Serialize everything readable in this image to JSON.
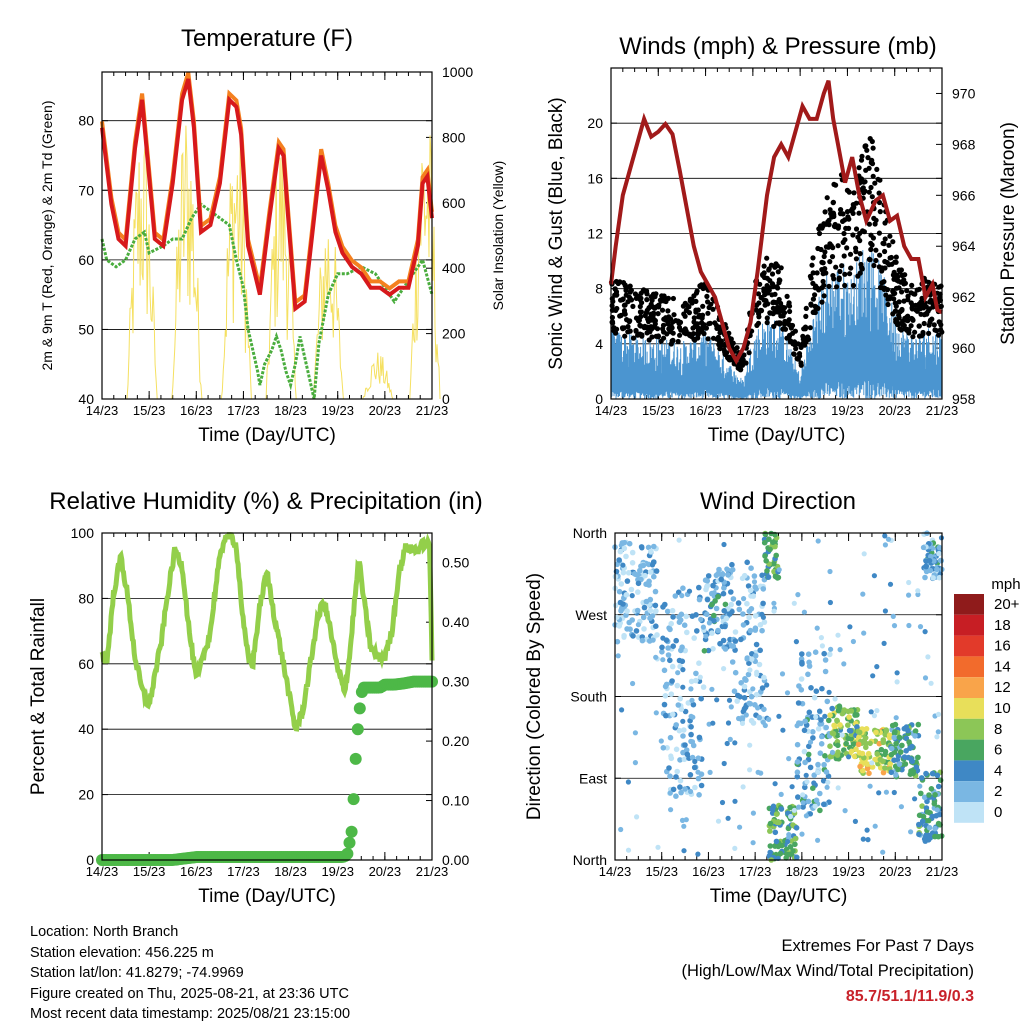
{
  "x_ticks": [
    "14/23",
    "15/23",
    "16/23",
    "17/23",
    "18/23",
    "19/23",
    "20/23",
    "21/23"
  ],
  "info": {
    "location": "Location: North Branch",
    "elevation": "Station elevation: 456.225 m",
    "latlon": "Station lat/lon: 41.8279; -74.9969",
    "created": "Figure created on Thu, 2025-08-21, at 23:36 UTC",
    "latest": "Most recent data timestamp: 2025/08/21 23:15:00"
  },
  "extremes": {
    "title": "Extremes For Past 7 Days",
    "subtitle": "(High/Low/Max Wind/Total Precipitation)",
    "values": "85.7/51.1/11.9/0.3"
  },
  "colors": {
    "temp_2m": "#d7191c",
    "temp_9m": "#f4801f",
    "dewpoint": "#4aad3e",
    "solar": "#f5e061",
    "sonic": "#4b95d0",
    "gust": "#000000",
    "pressure": "#a11a1a",
    "rh": "#93cf4a",
    "precip": "#4db847"
  },
  "chart_data": [
    {
      "type": "line",
      "title": "Temperature (F)",
      "xlabel": "Time (Day/UTC)",
      "ylabel": "2m & 9m T (Red, Orange) & 2m Td (Green)",
      "ylabel_right": "Solar Insolation (Yellow)",
      "xlim": [
        0,
        7
      ],
      "ylim": [
        40,
        87
      ],
      "ylim_right": [
        0,
        1000
      ],
      "yticks": [
        40,
        50,
        60,
        70,
        80
      ],
      "yticks_right": [
        0,
        200,
        400,
        600,
        800,
        1000
      ],
      "grid": true,
      "series": [
        {
          "role": "temp",
          "x": [
            0,
            0.2,
            0.35,
            0.5,
            0.7,
            0.85,
            1.0,
            1.12,
            1.3,
            1.5,
            1.7,
            1.83,
            1.95,
            2.1,
            2.3,
            2.5,
            2.7,
            2.85,
            2.95,
            3.1,
            3.35,
            3.55,
            3.75,
            3.85,
            3.95,
            4.1,
            4.3,
            4.5,
            4.65,
            4.8,
            4.95,
            5.1,
            5.3,
            5.5,
            5.7,
            5.9,
            6.1,
            6.3,
            6.5,
            6.7,
            6.8,
            6.9,
            7.0
          ],
          "values": [
            79,
            68,
            63,
            62,
            76,
            83,
            72,
            63,
            62,
            71,
            83,
            86,
            79,
            64,
            65,
            71,
            83,
            82,
            78,
            62,
            55,
            66,
            76,
            75,
            66,
            53,
            54,
            66,
            75,
            70,
            64,
            61,
            59,
            58,
            56,
            56,
            55,
            56,
            56,
            62,
            71,
            72,
            66
          ]
        },
        {
          "role": "dewpoint",
          "x": [
            0,
            0.1,
            0.3,
            0.5,
            0.7,
            0.9,
            1.0,
            1.3,
            1.5,
            1.7,
            1.9,
            2.1,
            2.3,
            2.5,
            2.7,
            2.85,
            3.0,
            3.1,
            3.2,
            3.3,
            3.35,
            3.45,
            3.6,
            3.7,
            3.8,
            3.9,
            4.0,
            4.1,
            4.2,
            4.3,
            4.4,
            4.5,
            4.6,
            4.8,
            5.0,
            5.2,
            5.5,
            5.8,
            6.0,
            6.2,
            6.4,
            6.6,
            6.8,
            7.0
          ],
          "values": [
            63,
            60,
            59,
            60,
            63,
            64,
            61,
            62,
            63,
            63,
            66,
            68,
            67,
            66,
            65,
            60,
            56,
            50,
            47,
            44,
            42,
            45,
            47,
            49,
            47,
            44,
            42,
            45,
            49,
            46,
            43,
            40,
            48,
            55,
            58,
            58,
            59,
            58,
            56,
            54,
            56,
            58,
            60,
            55
          ]
        },
        {
          "role": "solar",
          "days": [
            {
              "c": 0.85,
              "h": 900
            },
            {
              "c": 1.8,
              "h": 950
            },
            {
              "c": 2.85,
              "h": 920
            },
            {
              "c": 3.8,
              "h": 870
            },
            {
              "c": 4.8,
              "h": 640
            },
            {
              "c": 5.85,
              "h": 150
            },
            {
              "c": 6.85,
              "h": 980
            }
          ]
        }
      ]
    },
    {
      "type": "scatter",
      "title": "Winds (mph) & Pressure (mb)",
      "xlabel": "Time (Day/UTC)",
      "ylabel": "Sonic Wind & Gust (Blue, Black)",
      "ylabel_right": "Station Pressure (Maroon)",
      "xlim": [
        0,
        7
      ],
      "ylim": [
        0,
        24
      ],
      "ylim_right": [
        958,
        971
      ],
      "yticks": [
        0,
        4,
        8,
        12,
        16,
        20
      ],
      "yticks_right": [
        958,
        960,
        962,
        964,
        966,
        968,
        970
      ],
      "grid": true,
      "series": [
        {
          "role": "wind_level",
          "x": [
            0,
            0.5,
            1.0,
            1.5,
            2.0,
            2.5,
            2.8,
            3.0,
            3.3,
            3.6,
            3.8,
            4.0,
            4.3,
            4.6,
            4.9,
            5.1,
            5.3,
            5.5,
            5.7,
            5.9,
            6.1,
            6.4,
            6.7,
            7.0
          ],
          "values": [
            3.5,
            3.2,
            3.0,
            2.8,
            3.4,
            1.8,
            0.9,
            3.2,
            4.2,
            3.8,
            2.5,
            1.2,
            4.5,
            6.5,
            6.8,
            6.0,
            7.5,
            8.0,
            6.5,
            5.0,
            3.8,
            3.2,
            3.6,
            3.4
          ]
        },
        {
          "role": "pressure",
          "x": [
            0,
            0.1,
            0.25,
            0.4,
            0.55,
            0.7,
            0.85,
            1.0,
            1.15,
            1.3,
            1.45,
            1.6,
            1.75,
            1.9,
            2.05,
            2.2,
            2.35,
            2.5,
            2.65,
            2.8,
            2.95,
            3.1,
            3.2,
            3.3,
            3.45,
            3.6,
            3.75,
            3.9,
            4.05,
            4.2,
            4.35,
            4.5,
            4.6,
            4.7,
            4.8,
            4.95,
            5.1,
            5.25,
            5.4,
            5.6,
            5.75,
            5.9,
            6.05,
            6.2,
            6.35,
            6.5,
            6.65,
            6.8,
            6.9,
            7.0
          ],
          "values": [
            962.5,
            964,
            966,
            967,
            968,
            969,
            968.3,
            968.5,
            968.8,
            968.4,
            967,
            965.5,
            964,
            963,
            962.5,
            962,
            961,
            960,
            959.5,
            960,
            961,
            963,
            964.5,
            966,
            967.5,
            968,
            967.5,
            968.5,
            969.5,
            969,
            969,
            970,
            970.5,
            969,
            968,
            966.5,
            967.5,
            966,
            965,
            965.8,
            966,
            965,
            965.2,
            964,
            963.5,
            963.5,
            962,
            962.5,
            961.5,
            961.4
          ]
        }
      ]
    },
    {
      "type": "line",
      "title": "Relative Humidity (%) & Precipitation (in)",
      "xlabel": "Time (Day/UTC)",
      "ylabel": "Percent & Total Rainfall",
      "xlim": [
        0,
        7
      ],
      "ylim": [
        0,
        100
      ],
      "ylim_right": [
        0,
        0.55
      ],
      "yticks": [
        0,
        20,
        40,
        60,
        80,
        100
      ],
      "yticks_right": [
        "0.00",
        "0.10",
        "0.20",
        "0.30",
        "0.40",
        "0.50"
      ],
      "grid": true,
      "series": [
        {
          "role": "rh",
          "x": [
            0,
            0.1,
            0.25,
            0.4,
            0.55,
            0.7,
            0.85,
            1.0,
            1.1,
            1.25,
            1.4,
            1.55,
            1.7,
            1.85,
            2.0,
            2.15,
            2.3,
            2.45,
            2.6,
            2.75,
            2.85,
            3.0,
            3.1,
            3.2,
            3.35,
            3.5,
            3.65,
            3.85,
            4.0,
            4.1,
            4.25,
            4.4,
            4.55,
            4.7,
            4.85,
            5.0,
            5.15,
            5.25,
            5.35,
            5.45,
            5.55,
            5.7,
            5.85,
            6.0,
            6.15,
            6.3,
            6.45,
            6.55,
            6.7,
            6.85,
            6.95,
            7.0
          ],
          "values": [
            63,
            60,
            82,
            93,
            80,
            62,
            52,
            47,
            55,
            66,
            82,
            95,
            90,
            70,
            55,
            62,
            70,
            88,
            99,
            99,
            96,
            72,
            62,
            60,
            78,
            88,
            75,
            60,
            48,
            40,
            45,
            58,
            72,
            80,
            70,
            58,
            52,
            62,
            78,
            92,
            80,
            65,
            62,
            62,
            70,
            88,
            96,
            95,
            95,
            97,
            96,
            62
          ]
        },
        {
          "role": "precip",
          "x": [
            0,
            0.5,
            1.0,
            1.5,
            2.0,
            2.5,
            3.0,
            3.5,
            4.0,
            4.5,
            5.0,
            5.1,
            5.2,
            5.3,
            5.35,
            5.4,
            5.45,
            5.5,
            5.55,
            5.6,
            5.7,
            5.8,
            5.9,
            6.0,
            6.2,
            6.4,
            6.6,
            6.8,
            7.0
          ],
          "values": [
            0,
            0,
            0,
            0,
            0.005,
            0.005,
            0.005,
            0.005,
            0.005,
            0.005,
            0.005,
            0.005,
            0.008,
            0.05,
            0.12,
            0.2,
            0.24,
            0.28,
            0.29,
            0.29,
            0.29,
            0.29,
            0.29,
            0.295,
            0.295,
            0.297,
            0.3,
            0.3,
            0.3
          ]
        }
      ]
    },
    {
      "type": "scatter",
      "title": "Wind Direction",
      "xlabel": "Time (Day/UTC)",
      "ylabel": "Direction (Colored By Speed)",
      "xlim": [
        0,
        7
      ],
      "ylim": [
        0,
        360
      ],
      "yticks": [
        "North",
        "East",
        "South",
        "West",
        "North"
      ],
      "grid": true,
      "legend": {
        "title": "mph",
        "labels": [
          "20+",
          "18",
          "16",
          "14",
          "12",
          "10",
          "8",
          "6",
          "4",
          "2",
          "0"
        ],
        "colors": [
          "#8f1b1b",
          "#c71e24",
          "#e23a2a",
          "#f26b2c",
          "#f9a44a",
          "#e8df5a",
          "#8cc657",
          "#49a660",
          "#3f88c5",
          "#7ab7e3",
          "#bfe3f6"
        ]
      },
      "series": [
        {
          "role": "direction_bands",
          "bands": [
            {
              "x0": 0,
              "x1": 0.9,
              "d0": 240,
              "d1": 350,
              "s": 2
            },
            {
              "x0": 1.0,
              "x1": 1.9,
              "d0": 70,
              "d1": 300,
              "s": 2
            },
            {
              "x0": 1.9,
              "x1": 2.5,
              "d0": 230,
              "d1": 320,
              "s": 3
            },
            {
              "x0": 2.5,
              "x1": 3.2,
              "d0": 150,
              "d1": 330,
              "s": 2
            },
            {
              "x0": 3.2,
              "x1": 3.5,
              "d0": 310,
              "d1": 360,
              "s": 6
            },
            {
              "x0": 3.3,
              "x1": 3.9,
              "d0": 0,
              "d1": 60,
              "s": 6
            },
            {
              "x0": 3.9,
              "x1": 4.6,
              "d0": 50,
              "d1": 230,
              "s": 3
            },
            {
              "x0": 4.6,
              "x1": 5.2,
              "d0": 110,
              "d1": 170,
              "s": 7
            },
            {
              "x0": 5.2,
              "x1": 5.9,
              "d0": 95,
              "d1": 145,
              "s": 9
            },
            {
              "x0": 5.9,
              "x1": 6.5,
              "d0": 90,
              "d1": 150,
              "s": 5
            },
            {
              "x0": 6.5,
              "x1": 7.0,
              "d0": 20,
              "d1": 100,
              "s": 5
            },
            {
              "x0": 6.6,
              "x1": 7.0,
              "d0": 310,
              "d1": 360,
              "s": 3
            }
          ]
        }
      ]
    }
  ]
}
